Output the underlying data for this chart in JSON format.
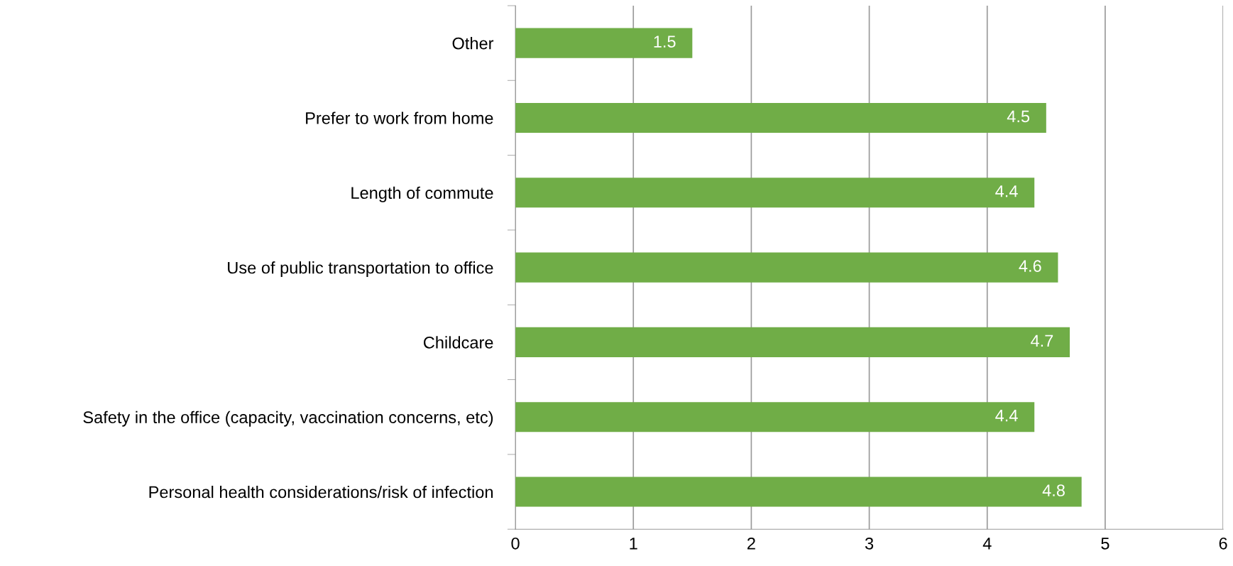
{
  "chart_data": {
    "type": "bar",
    "orientation": "horizontal",
    "categories": [
      "Other",
      "Prefer to work from home",
      "Length of commute",
      "Use of public transportation to office",
      "Childcare",
      "Safety in the office (capacity, vaccination concerns, etc)",
      "Personal health considerations/risk of infection"
    ],
    "values": [
      1.5,
      4.5,
      4.4,
      4.6,
      4.7,
      4.4,
      4.8
    ],
    "color": "#70ad47",
    "data_labels": true,
    "xlim": [
      0,
      6
    ],
    "xticks": [
      0,
      1,
      2,
      3,
      4,
      5,
      6
    ],
    "grid": "x",
    "legend": false
  }
}
